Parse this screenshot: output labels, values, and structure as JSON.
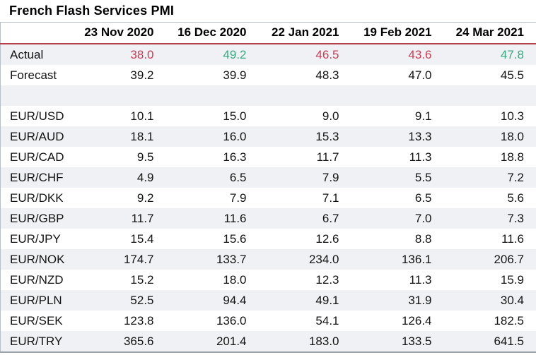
{
  "chart_data": {
    "type": "table",
    "title": "French Flash Services PMI",
    "columns": [
      "",
      "23 Nov 2020",
      "16 Dec 2020",
      "22 Jan 2021",
      "19 Feb 2021",
      "24 Mar 2021"
    ],
    "rows": [
      {
        "label": "Actual",
        "values": [
          "38.0",
          "49.2",
          "46.5",
          "43.6",
          "47.8"
        ],
        "value_colors": [
          "negative",
          "positive",
          "negative",
          "negative",
          "positive"
        ]
      },
      {
        "label": "Forecast",
        "values": [
          "39.2",
          "39.9",
          "48.3",
          "47.0",
          "45.5"
        ]
      },
      {
        "label": "",
        "values": [
          "",
          "",
          "",
          "",
          ""
        ],
        "spacer": true
      },
      {
        "label": "EUR/USD",
        "values": [
          "10.1",
          "15.0",
          "9.0",
          "9.1",
          "10.3"
        ]
      },
      {
        "label": "EUR/AUD",
        "values": [
          "18.1",
          "16.0",
          "15.3",
          "13.3",
          "18.0"
        ]
      },
      {
        "label": "EUR/CAD",
        "values": [
          "9.5",
          "16.3",
          "11.7",
          "11.3",
          "18.8"
        ]
      },
      {
        "label": "EUR/CHF",
        "values": [
          "4.9",
          "6.5",
          "7.9",
          "5.5",
          "7.2"
        ]
      },
      {
        "label": "EUR/DKK",
        "values": [
          "9.2",
          "7.9",
          "7.1",
          "6.5",
          "5.6"
        ]
      },
      {
        "label": "EUR/GBP",
        "values": [
          "11.7",
          "11.6",
          "6.7",
          "7.0",
          "7.3"
        ]
      },
      {
        "label": "EUR/JPY",
        "values": [
          "15.4",
          "15.6",
          "12.6",
          "8.8",
          "11.6"
        ]
      },
      {
        "label": "EUR/NOK",
        "values": [
          "174.7",
          "133.7",
          "234.0",
          "136.1",
          "206.7"
        ]
      },
      {
        "label": "EUR/NZD",
        "values": [
          "15.2",
          "18.0",
          "12.3",
          "11.3",
          "15.9"
        ]
      },
      {
        "label": "EUR/PLN",
        "values": [
          "52.5",
          "94.4",
          "49.1",
          "31.9",
          "30.4"
        ]
      },
      {
        "label": "EUR/SEK",
        "values": [
          "123.8",
          "136.0",
          "54.1",
          "126.4",
          "182.5"
        ]
      },
      {
        "label": "EUR/TRY",
        "values": [
          "365.6",
          "201.4",
          "183.0",
          "133.5",
          "641.5"
        ]
      }
    ],
    "layout_hints": {
      "striped_rows": true,
      "header_rule": true,
      "value_alignment": "right"
    }
  },
  "colors": {
    "negative": "#cc3d55",
    "positive": "#36a97f",
    "rule": "#b4424a",
    "stripe": "#eff1f4"
  }
}
